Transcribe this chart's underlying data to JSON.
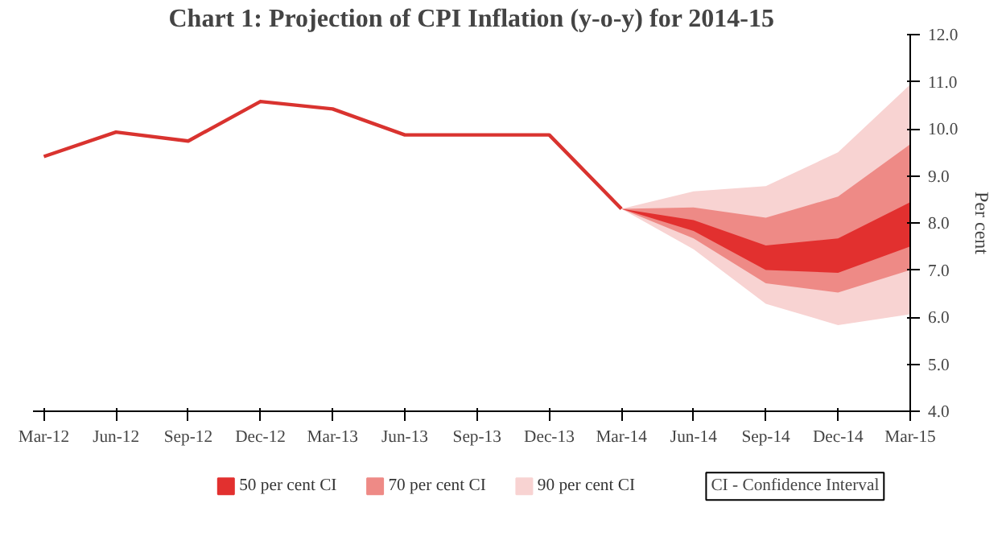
{
  "chart_data": {
    "type": "line",
    "title": "Chart 1: Projection of CPI Inflation (y-o-y) for 2014-15",
    "ylabel": "Per cent",
    "categories": [
      "Mar-12",
      "Jun-12",
      "Sep-12",
      "Dec-12",
      "Mar-13",
      "Jun-13",
      "Sep-13",
      "Dec-13",
      "Mar-14",
      "Jun-14",
      "Sep-14",
      "Dec-14",
      "Mar-15"
    ],
    "series": [
      {
        "type": "area",
        "name": "90 per cent CI",
        "color": "#f8d3d2",
        "values": [
          null,
          null,
          null,
          null,
          null,
          null,
          null,
          null,
          null,
          null,
          null,
          null,
          null
        ],
        "lower": [
          null,
          null,
          null,
          null,
          null,
          null,
          null,
          null,
          8.3,
          7.44,
          6.28,
          5.83,
          6.06
        ],
        "upper": [
          null,
          null,
          null,
          null,
          null,
          null,
          null,
          null,
          8.3,
          8.67,
          8.78,
          9.5,
          10.94
        ]
      },
      {
        "type": "area",
        "name": "70 per cent CI",
        "color": "#ee8a86",
        "values": [
          null,
          null,
          null,
          null,
          null,
          null,
          null,
          null,
          null,
          null,
          null,
          null,
          null
        ],
        "lower": [
          null,
          null,
          null,
          null,
          null,
          null,
          null,
          null,
          8.3,
          7.67,
          6.72,
          6.52,
          7.0
        ],
        "upper": [
          null,
          null,
          null,
          null,
          null,
          null,
          null,
          null,
          8.3,
          8.33,
          8.11,
          8.56,
          9.67
        ]
      },
      {
        "type": "area",
        "name": "50 per cent CI",
        "color": "#e2302f",
        "values": [
          null,
          null,
          null,
          null,
          null,
          null,
          null,
          null,
          null,
          null,
          null,
          null,
          null
        ],
        "lower": [
          null,
          null,
          null,
          null,
          null,
          null,
          null,
          null,
          8.3,
          7.83,
          7.0,
          6.94,
          7.5
        ],
        "upper": [
          null,
          null,
          null,
          null,
          null,
          null,
          null,
          null,
          8.3,
          8.06,
          7.52,
          7.67,
          8.44
        ]
      },
      {
        "color": "#d9332f",
        "values": [
          9.41,
          9.93,
          9.74,
          10.58,
          10.42,
          9.87,
          9.87,
          9.87,
          8.3,
          null,
          null,
          null,
          null
        ]
      }
    ],
    "ylim": [
      4,
      12
    ],
    "yticks": [
      {
        "value": 4,
        "label": "4.0"
      },
      {
        "value": 5,
        "label": "5.0"
      },
      {
        "value": 6,
        "label": "6.0"
      },
      {
        "value": 7,
        "label": "7.0"
      },
      {
        "value": 8,
        "label": "8.0"
      },
      {
        "value": 9,
        "label": "9.0"
      },
      {
        "value": 10,
        "label": "10.0"
      },
      {
        "value": 11,
        "label": "11.0"
      },
      {
        "value": 12,
        "label": "12.0"
      }
    ],
    "grid": false,
    "legend": "bottom",
    "annotations": [
      "CI - Confidence Interval"
    ]
  }
}
